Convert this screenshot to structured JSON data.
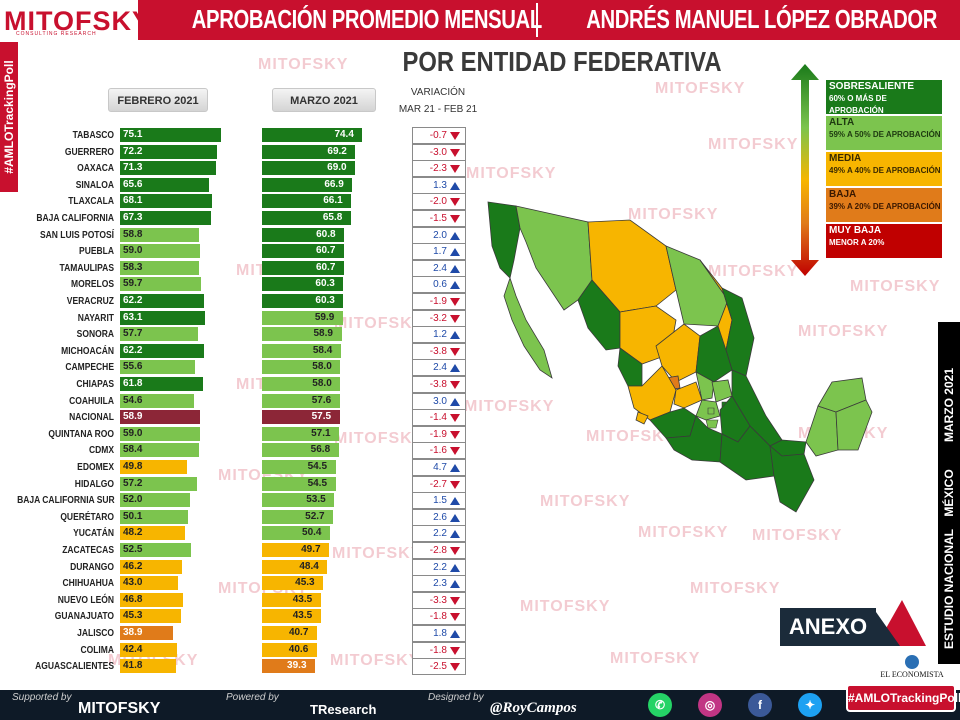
{
  "header": {
    "logo": "MITOFSKY",
    "logo_sub": "CONSULTING RESEARCH",
    "title_left": "APROBACIÓN PROMEDIO MENSUAL",
    "title_right": "ANDRÉS MANUEL LÓPEZ OBRADOR",
    "subtitle": "POR ENTIDAD FEDERATIVA"
  },
  "left_tag": "#AMLOTrackingPoll",
  "columns": {
    "feb": "FEBRERO 2021",
    "mar": "MARZO 2021",
    "var_title": "VARIACIÓN",
    "var_sub": "MAR 21 - FEB 21"
  },
  "colors": {
    "sobresaliente": "#1a7a1a",
    "alta": "#7cc44e",
    "media": "#f7b500",
    "baja": "#e07b1a",
    "muy_baja": "#c00000",
    "nacional": "#8c2637"
  },
  "chart_data": {
    "type": "bar",
    "categories": [
      "TABASCO",
      "GUERRERO",
      "OAXACA",
      "SINALOA",
      "TLAXCALA",
      "BAJA CALIFORNIA",
      "SAN LUIS POTOSÍ",
      "PUEBLA",
      "TAMAULIPAS",
      "MORELOS",
      "VERACRUZ",
      "NAYARIT",
      "SONORA",
      "MICHOACÁN",
      "CAMPECHE",
      "CHIAPAS",
      "COAHUILA",
      "NACIONAL",
      "QUINTANA ROO",
      "CDMX",
      "EDOMEX",
      "HIDALGO",
      "BAJA CALIFORNIA SUR",
      "QUERÉTARO",
      "YUCATÁN",
      "ZACATECAS",
      "DURANGO",
      "CHIHUAHUA",
      "NUEVO LEÓN",
      "GUANAJUATO",
      "JALISCO",
      "COLIMA",
      "AGUASCALIENTES"
    ],
    "series": [
      {
        "name": "FEBRERO 2021",
        "values": [
          75.1,
          72.2,
          71.3,
          65.6,
          68.1,
          67.3,
          58.8,
          59.0,
          58.3,
          59.7,
          62.2,
          63.1,
          57.7,
          62.2,
          55.6,
          61.8,
          54.6,
          58.9,
          59.0,
          58.4,
          49.8,
          57.2,
          52.0,
          50.1,
          48.2,
          52.5,
          46.2,
          43.0,
          46.8,
          45.3,
          38.9,
          42.4,
          41.8
        ]
      },
      {
        "name": "MARZO 2021",
        "values": [
          74.4,
          69.2,
          69.0,
          66.9,
          66.1,
          65.8,
          60.8,
          60.7,
          60.7,
          60.3,
          60.3,
          59.9,
          58.9,
          58.4,
          58.0,
          58.0,
          57.6,
          57.5,
          57.1,
          56.8,
          54.5,
          54.5,
          53.5,
          52.7,
          50.4,
          49.7,
          48.4,
          45.3,
          43.5,
          43.5,
          40.7,
          40.6,
          39.3
        ]
      },
      {
        "name": "VARIACIÓN",
        "values": [
          -0.7,
          -3.0,
          -2.3,
          1.3,
          -2.0,
          -1.5,
          2.0,
          1.7,
          2.4,
          0.6,
          -1.9,
          -3.2,
          1.2,
          -3.8,
          2.4,
          -3.8,
          3.0,
          -1.4,
          -1.9,
          -1.6,
          4.7,
          -2.7,
          1.5,
          2.6,
          2.2,
          -2.8,
          2.2,
          2.3,
          -3.3,
          -1.8,
          1.8,
          -1.8,
          -2.5
        ]
      }
    ],
    "xlim": [
      0,
      100
    ]
  },
  "legend": [
    {
      "title": "SOBRESALIENTE",
      "desc": "60% O MÁS DE APROBACIÓN"
    },
    {
      "title": "ALTA",
      "desc": "59% A 50% DE APROBACIÓN"
    },
    {
      "title": "MEDIA",
      "desc": "49% A 40% DE APROBACIÓN"
    },
    {
      "title": "BAJA",
      "desc": "39% A 20% DE APROBACIÓN"
    },
    {
      "title": "MUY BAJA",
      "desc": "MENOR A 20%"
    }
  ],
  "right_strip": [
    "ESTUDIO NACIONAL",
    "MÉXICO",
    "MARZO 2021"
  ],
  "anexo": "ANEXO",
  "economista": "EL ECONOMISTA",
  "watermark": "MITOFSKY",
  "footer": {
    "supported": "Supported by",
    "supported_logo": "MITOFSKY",
    "powered": "Powered by",
    "powered_logo": "TResearch",
    "designed": "Designed by",
    "designer": "@RoyCampos",
    "tag": "#AMLOTrackingPoll"
  }
}
